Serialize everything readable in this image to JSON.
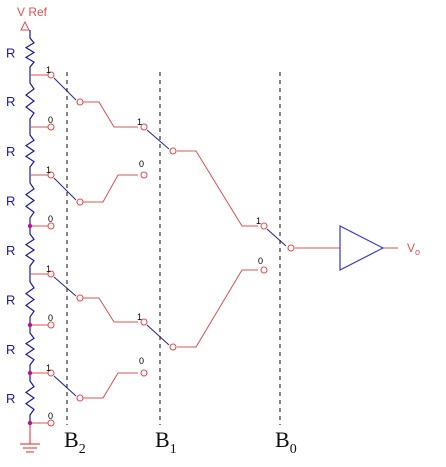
{
  "colors": {
    "wire": "#e05050",
    "switch_blade": "#2a2aa8",
    "resistor": "#1a1aa0",
    "junction": "#c0109a",
    "dashed": "#222222",
    "amplifier": "#3a3ad0"
  },
  "labels": {
    "vref_main": "V Ref",
    "resistor": "R",
    "bit_one": "1",
    "bit_zero": "0",
    "b2_main": "B",
    "b2_sub": "2",
    "b1_main": "B",
    "b1_sub": "1",
    "b0_main": "B",
    "b0_sub": "0",
    "vo_main": "V",
    "vo_sub": "o"
  },
  "icons": {
    "ground": "ground-icon",
    "amplifier": "buffer-amplifier-icon"
  }
}
